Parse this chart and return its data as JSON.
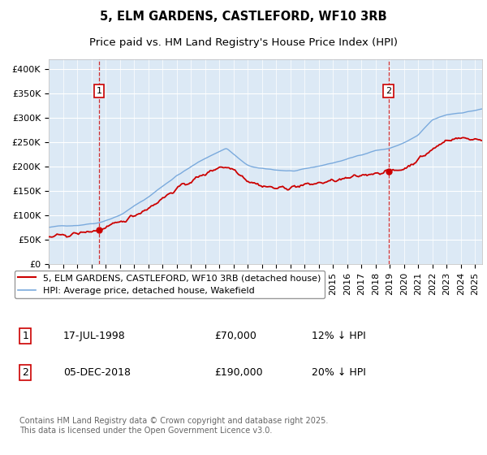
{
  "title_line1": "5, ELM GARDENS, CASTLEFORD, WF10 3RB",
  "title_line2": "Price paid vs. HM Land Registry's House Price Index (HPI)",
  "ylim": [
    0,
    420000
  ],
  "yticks": [
    0,
    50000,
    100000,
    150000,
    200000,
    250000,
    300000,
    350000,
    400000
  ],
  "ytick_labels": [
    "£0",
    "£50K",
    "£100K",
    "£150K",
    "£200K",
    "£250K",
    "£300K",
    "£350K",
    "£400K"
  ],
  "bg_color": "#dce9f5",
  "grid_color": "#ffffff",
  "red_line_color": "#cc0000",
  "blue_line_color": "#7aaadd",
  "sale1_x": 1998.54,
  "sale1_y": 70000,
  "sale1_date": "17-JUL-1998",
  "sale1_price_str": "£70,000",
  "sale1_label": "12% ↓ HPI",
  "sale2_x": 2018.92,
  "sale2_y": 190000,
  "sale2_date": "05-DEC-2018",
  "sale2_price_str": "£190,000",
  "sale2_label": "20% ↓ HPI",
  "legend_label1": "5, ELM GARDENS, CASTLEFORD, WF10 3RB (detached house)",
  "legend_label2": "HPI: Average price, detached house, Wakefield",
  "footer": "Contains HM Land Registry data © Crown copyright and database right 2025.\nThis data is licensed under the Open Government Licence v3.0.",
  "title_fontsize": 10.5,
  "subtitle_fontsize": 9.5,
  "tick_fontsize": 8,
  "legend_fontsize": 8,
  "footer_fontsize": 7,
  "xmin": 1995.0,
  "xmax": 2025.5
}
